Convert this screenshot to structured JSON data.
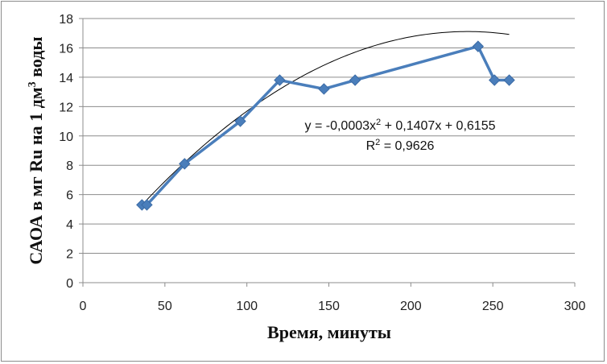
{
  "chart_data": {
    "type": "line",
    "xlabel": "Время, минуты",
    "ylabel_parts": [
      "САОА в мг Ru на 1 дм",
      "3",
      " воды"
    ],
    "xlim": [
      0,
      300
    ],
    "ylim": [
      0,
      18
    ],
    "x_ticks": [
      "0",
      "50",
      "100",
      "150",
      "200",
      "250",
      "300"
    ],
    "y_ticks": [
      "0",
      "2",
      "4",
      "6",
      "8",
      "10",
      "12",
      "14",
      "16",
      "18"
    ],
    "grid": "horizontal",
    "series": [
      {
        "color": "#4a7ebb",
        "marker": "diamond",
        "x": [
          36,
          39,
          62,
          96,
          120,
          147,
          166,
          241,
          251,
          260
        ],
        "y": [
          5.3,
          5.3,
          8.1,
          11.0,
          13.8,
          13.2,
          13.8,
          16.1,
          13.8,
          13.8
        ]
      }
    ],
    "trendline": {
      "type": "polynomial",
      "color": "#000000",
      "coefficients": [
        -0.0003,
        0.1407,
        0.6155
      ],
      "x_range": [
        36,
        260
      ],
      "equation_parts": [
        "y = -0,0003x",
        "2",
        " + 0,1407x + 0,6155"
      ],
      "r2_parts": [
        "R",
        "2",
        " = 0,9626"
      ]
    }
  }
}
